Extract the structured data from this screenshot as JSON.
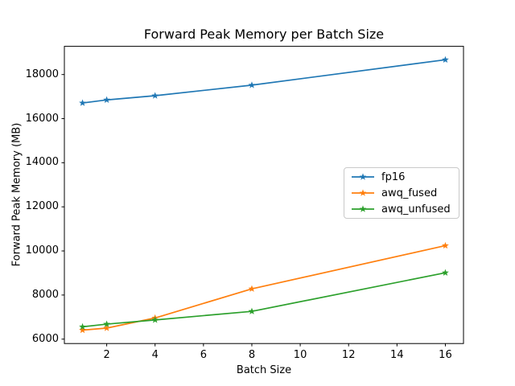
{
  "chart_data": {
    "type": "line",
    "title": "Forward Peak Memory per Batch Size",
    "xlabel": "Batch Size",
    "ylabel": "Forward Peak Memory (MB)",
    "x": [
      1,
      2,
      4,
      8,
      16
    ],
    "series": [
      {
        "name": "fp16",
        "color": "#1f77b4",
        "marker": "star",
        "values": [
          16710,
          16850,
          17040,
          17520,
          18670
        ]
      },
      {
        "name": "awq_fused",
        "color": "#ff7f0e",
        "marker": "star",
        "values": [
          6410,
          6500,
          6960,
          8280,
          10240
        ]
      },
      {
        "name": "awq_unfused",
        "color": "#2ca02c",
        "marker": "star",
        "values": [
          6560,
          6680,
          6870,
          7260,
          9010
        ]
      }
    ],
    "xlim": [
      0.25,
      16.75
    ],
    "ylim": [
      5800,
      19280
    ],
    "xticks": [
      2,
      4,
      6,
      8,
      10,
      12,
      14,
      16
    ],
    "yticks": [
      6000,
      8000,
      10000,
      12000,
      14000,
      16000,
      18000
    ],
    "xtick_labels": [
      "2",
      "4",
      "6",
      "8",
      "10",
      "12",
      "14",
      "16"
    ],
    "ytick_labels": [
      "6000",
      "8000",
      "10000",
      "12000",
      "14000",
      "16000",
      "18000"
    ],
    "grid": false,
    "legend_position": "center right",
    "frame_color": "#000000",
    "background_color": "#ffffff"
  }
}
